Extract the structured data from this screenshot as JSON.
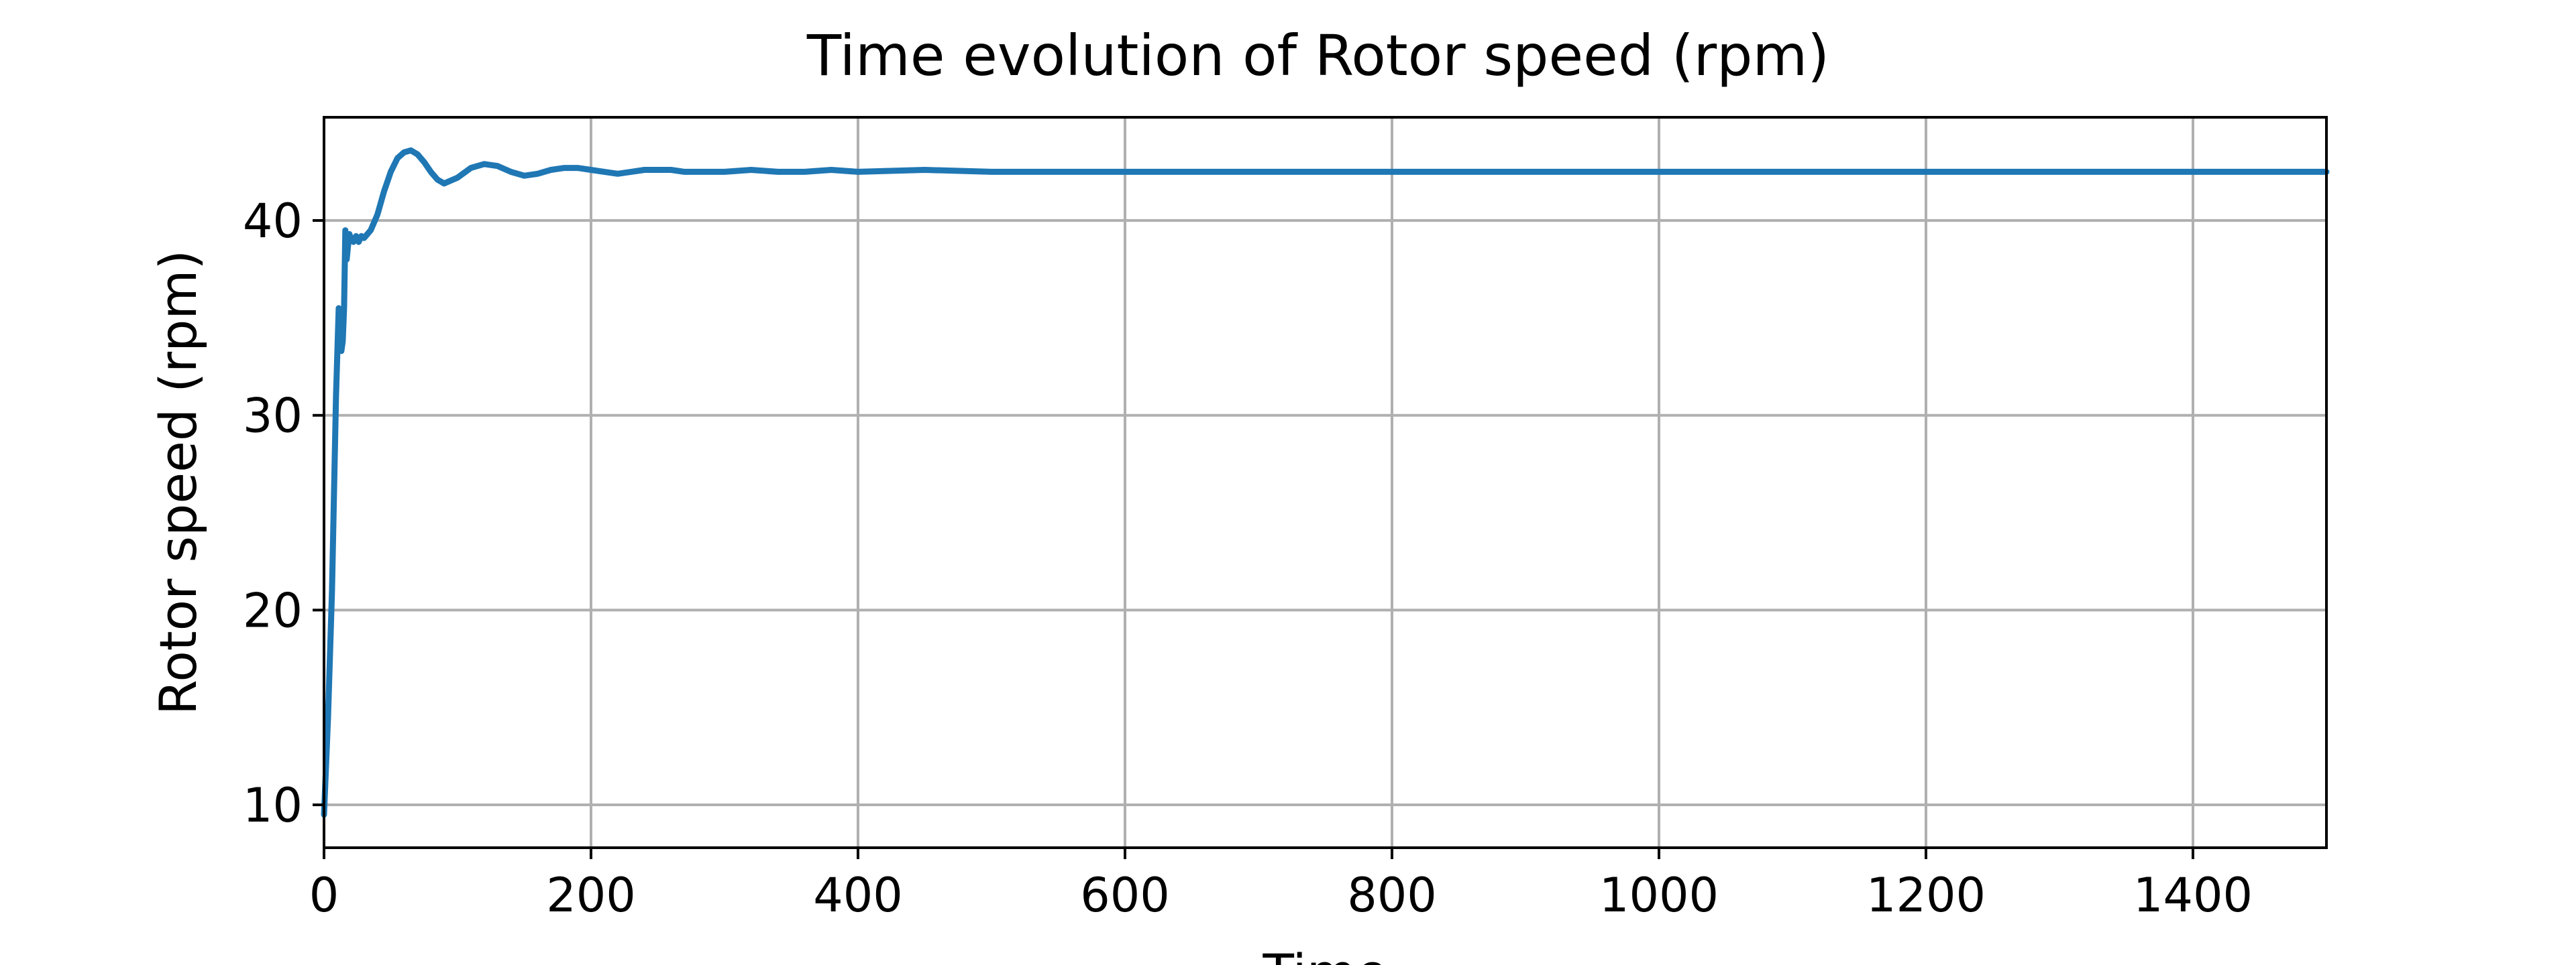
{
  "chart_data": {
    "type": "line",
    "title": "Time evolution of Rotor speed (rpm)",
    "xlabel": "Time",
    "ylabel": "Rotor speed (rpm)",
    "xlim": [
      0,
      1500
    ],
    "ylim": [
      7.8,
      45.3
    ],
    "xticks": [
      0,
      200,
      400,
      600,
      800,
      1000,
      1200,
      1400
    ],
    "yticks": [
      10,
      20,
      30,
      40
    ],
    "grid": true,
    "legend": "none",
    "colors": {
      "line": "#1f77b4",
      "grid": "#b0b0b0",
      "axes": "#000000"
    },
    "series": [
      {
        "x": [
          0,
          3,
          6,
          9,
          11,
          12,
          13,
          14,
          15,
          16,
          17,
          18,
          19,
          20,
          22,
          24,
          26,
          28,
          30,
          35,
          40,
          45,
          50,
          55,
          60,
          65,
          70,
          75,
          80,
          85,
          90,
          100,
          110,
          120,
          130,
          140,
          150,
          160,
          170,
          180,
          190,
          200,
          210,
          220,
          230,
          240,
          250,
          260,
          270,
          280,
          290,
          300,
          320,
          340,
          360,
          380,
          400,
          450,
          500,
          550,
          600,
          700,
          800,
          1000,
          1200,
          1400,
          1500
        ],
        "y": [
          9.5,
          14.5,
          21,
          31,
          35.5,
          34.5,
          33.3,
          33.8,
          35.5,
          39.5,
          38,
          38.7,
          39.3,
          39.1,
          38.9,
          39.2,
          38.9,
          39.2,
          39.1,
          39.5,
          40.3,
          41.5,
          42.5,
          43.2,
          43.5,
          43.6,
          43.4,
          43,
          42.5,
          42.1,
          41.9,
          42.2,
          42.7,
          42.9,
          42.8,
          42.5,
          42.3,
          42.4,
          42.6,
          42.7,
          42.7,
          42.6,
          42.5,
          42.4,
          42.5,
          42.6,
          42.6,
          42.6,
          42.5,
          42.5,
          42.5,
          42.5,
          42.6,
          42.5,
          42.5,
          42.6,
          42.5,
          42.6,
          42.5,
          42.5,
          42.5,
          42.5,
          42.5,
          42.5,
          42.5,
          42.5,
          42.5
        ]
      }
    ]
  }
}
